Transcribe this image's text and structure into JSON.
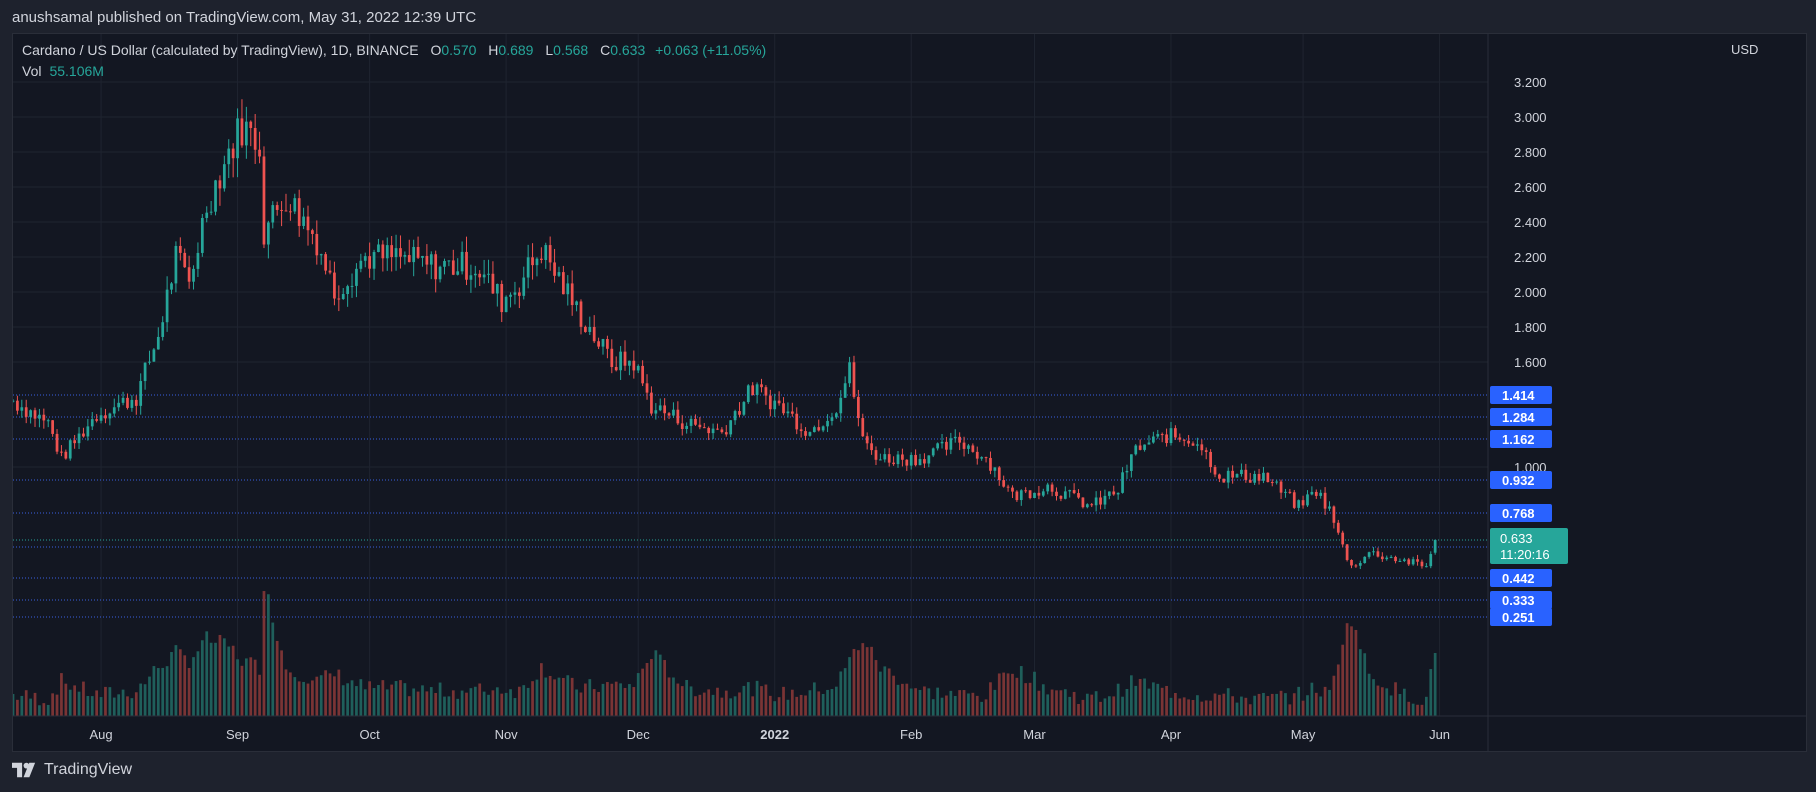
{
  "publisher": {
    "text": "anushsamal published on TradingView.com, May 31, 2022 12:39 UTC"
  },
  "legend": {
    "title": "Cardano / US Dollar (calculated by TradingView), 1D, BINANCE",
    "o_label": "O",
    "o": "0.570",
    "h_label": "H",
    "h": "0.689",
    "l_label": "L",
    "l": "0.568",
    "c_label": "C",
    "c": "0.633",
    "change": "+0.063 (+11.05%)",
    "vol_label": "Vol",
    "vol": "55.106M"
  },
  "axis": {
    "currency": "USD"
  },
  "footer": {
    "brand": "TradingView"
  },
  "colors": {
    "up": "#26a69a",
    "down": "#ef5350",
    "vol_up": "#1f5f5b",
    "vol_down": "#7a3435",
    "level_badge": "#2962ff",
    "level_line": "#3a5fe0",
    "grid": "#1f2430",
    "background": "#131722"
  },
  "chart_data": {
    "type": "candlestick",
    "title": "Cardano / US Dollar (calculated by TradingView), 1D, BINANCE",
    "xlabel": "",
    "ylabel": "USD",
    "ylim": [
      0.25,
      3.3
    ],
    "y_ticks": [
      "3.200",
      "3.000",
      "2.800",
      "2.600",
      "2.400",
      "2.200",
      "2.000",
      "1.800",
      "1.600",
      "1.000"
    ],
    "x_ticks": [
      {
        "label": "Aug",
        "date": "2021-08-01"
      },
      {
        "label": "Sep",
        "date": "2021-09-01"
      },
      {
        "label": "Oct",
        "date": "2021-10-01"
      },
      {
        "label": "Nov",
        "date": "2021-11-01"
      },
      {
        "label": "Dec",
        "date": "2021-12-01"
      },
      {
        "label": "2022",
        "date": "2022-01-01"
      },
      {
        "label": "Feb",
        "date": "2022-02-01"
      },
      {
        "label": "Mar",
        "date": "2022-03-01"
      },
      {
        "label": "Apr",
        "date": "2022-04-01"
      },
      {
        "label": "May",
        "date": "2022-05-01"
      },
      {
        "label": "Jun",
        "date": "2022-06-01"
      }
    ],
    "x_range": [
      "2021-07-12",
      "2022-06-12"
    ],
    "grid": true,
    "levels": [
      "1.414",
      "1.284",
      "1.162",
      "0.932",
      "0.768",
      "0.598",
      "0.442",
      "0.333",
      "0.251"
    ],
    "last_price": {
      "value": "0.633",
      "countdown": "11:20:16"
    },
    "anchors": [
      {
        "date": "2021-07-12",
        "close": 1.38,
        "vol": 0.15
      },
      {
        "date": "2021-07-20",
        "close": 1.25,
        "vol": 0.12
      },
      {
        "date": "2021-07-23",
        "close": 1.05,
        "vol": 0.25
      },
      {
        "date": "2021-07-31",
        "close": 1.3,
        "vol": 0.15
      },
      {
        "date": "2021-08-09",
        "close": 1.4,
        "vol": 0.18
      },
      {
        "date": "2021-08-14",
        "close": 1.75,
        "vol": 0.35
      },
      {
        "date": "2021-08-18",
        "close": 2.2,
        "vol": 0.45
      },
      {
        "date": "2021-08-21",
        "close": 2.05,
        "vol": 0.4
      },
      {
        "date": "2021-08-25",
        "close": 2.5,
        "vol": 0.55
      },
      {
        "date": "2021-08-30",
        "close": 2.8,
        "vol": 0.5
      },
      {
        "date": "2021-09-02",
        "close": 2.95,
        "vol": 0.4
      },
      {
        "date": "2021-09-06",
        "close": 2.85,
        "vol": 0.35
      },
      {
        "date": "2021-09-07",
        "close": 2.35,
        "vol": 0.95
      },
      {
        "date": "2021-09-12",
        "close": 2.55,
        "vol": 0.35
      },
      {
        "date": "2021-09-19",
        "close": 2.3,
        "vol": 0.25
      },
      {
        "date": "2021-09-23",
        "close": 2.0,
        "vol": 0.3
      },
      {
        "date": "2021-09-30",
        "close": 2.2,
        "vol": 0.2
      },
      {
        "date": "2021-10-07",
        "close": 2.2,
        "vol": 0.2
      },
      {
        "date": "2021-10-15",
        "close": 2.15,
        "vol": 0.18
      },
      {
        "date": "2021-10-25",
        "close": 2.15,
        "vol": 0.18
      },
      {
        "date": "2021-10-31",
        "close": 1.95,
        "vol": 0.2
      },
      {
        "date": "2021-11-04",
        "close": 2.05,
        "vol": 0.18
      },
      {
        "date": "2021-11-09",
        "close": 2.25,
        "vol": 0.35
      },
      {
        "date": "2021-11-17",
        "close": 1.9,
        "vol": 0.2
      },
      {
        "date": "2021-11-25",
        "close": 1.6,
        "vol": 0.22
      },
      {
        "date": "2021-11-30",
        "close": 1.6,
        "vol": 0.22
      },
      {
        "date": "2021-12-04",
        "close": 1.35,
        "vol": 0.45
      },
      {
        "date": "2021-12-12",
        "close": 1.25,
        "vol": 0.2
      },
      {
        "date": "2021-12-20",
        "close": 1.2,
        "vol": 0.18
      },
      {
        "date": "2021-12-27",
        "close": 1.45,
        "vol": 0.2
      },
      {
        "date": "2022-01-02",
        "close": 1.35,
        "vol": 0.15
      },
      {
        "date": "2022-01-09",
        "close": 1.2,
        "vol": 0.18
      },
      {
        "date": "2022-01-15",
        "close": 1.35,
        "vol": 0.22
      },
      {
        "date": "2022-01-18",
        "close": 1.55,
        "vol": 0.4
      },
      {
        "date": "2022-01-21",
        "close": 1.15,
        "vol": 0.55
      },
      {
        "date": "2022-01-25",
        "close": 1.05,
        "vol": 0.35
      },
      {
        "date": "2022-02-03",
        "close": 1.05,
        "vol": 0.18
      },
      {
        "date": "2022-02-12",
        "close": 1.15,
        "vol": 0.15
      },
      {
        "date": "2022-02-18",
        "close": 1.05,
        "vol": 0.15
      },
      {
        "date": "2022-02-24",
        "close": 0.85,
        "vol": 0.35
      },
      {
        "date": "2022-03-04",
        "close": 0.9,
        "vol": 0.2
      },
      {
        "date": "2022-03-14",
        "close": 0.8,
        "vol": 0.12
      },
      {
        "date": "2022-03-20",
        "close": 0.88,
        "vol": 0.18
      },
      {
        "date": "2022-03-24",
        "close": 1.1,
        "vol": 0.25
      },
      {
        "date": "2022-03-31",
        "close": 1.18,
        "vol": 0.18
      },
      {
        "date": "2022-04-07",
        "close": 1.15,
        "vol": 0.15
      },
      {
        "date": "2022-04-12",
        "close": 0.95,
        "vol": 0.15
      },
      {
        "date": "2022-04-22",
        "close": 0.95,
        "vol": 0.12
      },
      {
        "date": "2022-04-30",
        "close": 0.8,
        "vol": 0.15
      },
      {
        "date": "2022-05-04",
        "close": 0.88,
        "vol": 0.2
      },
      {
        "date": "2022-05-07",
        "close": 0.78,
        "vol": 0.15
      },
      {
        "date": "2022-05-10",
        "close": 0.6,
        "vol": 0.55
      },
      {
        "date": "2022-05-12",
        "close": 0.5,
        "vol": 0.7
      },
      {
        "date": "2022-05-16",
        "close": 0.57,
        "vol": 0.3
      },
      {
        "date": "2022-05-24",
        "close": 0.53,
        "vol": 0.15
      },
      {
        "date": "2022-05-29",
        "close": 0.5,
        "vol": 0.12
      },
      {
        "date": "2022-05-31",
        "close": 0.633,
        "vol": 0.45
      }
    ]
  }
}
